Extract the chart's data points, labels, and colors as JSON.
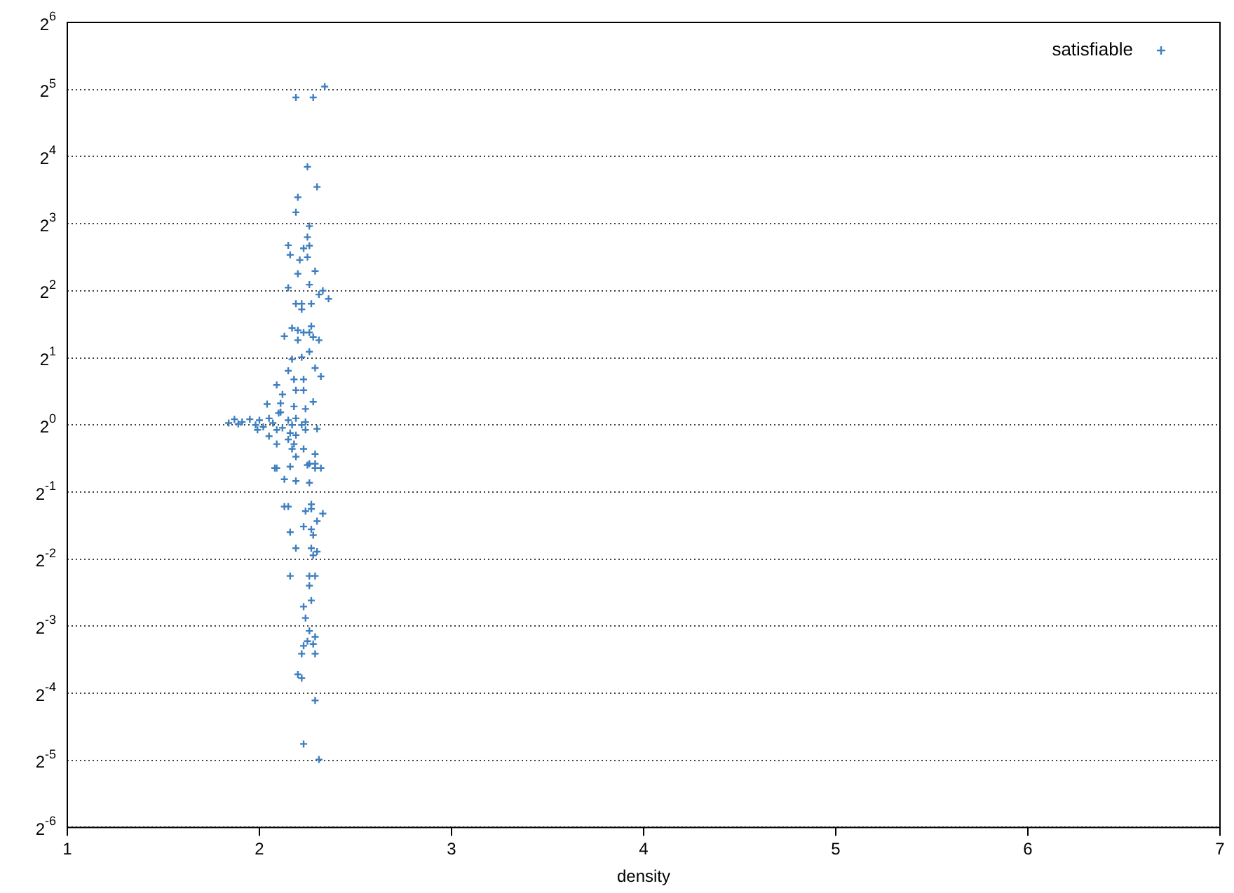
{
  "chart_data": {
    "type": "scatter",
    "xlabel": "density",
    "xlim": [
      1,
      7
    ],
    "xticks": [
      1,
      2,
      3,
      4,
      5,
      6,
      7
    ],
    "log": "y",
    "ylim": [
      0.015625,
      64
    ],
    "yticks": [
      {
        "value": 0.015625,
        "label": "2$^{-6}$"
      },
      {
        "value": 0.03125,
        "label": "2$^{-5}$"
      },
      {
        "value": 0.0625,
        "label": "2$^{-4}$"
      },
      {
        "value": 0.125,
        "label": "2$^{-3}$"
      },
      {
        "value": 0.25,
        "label": "2$^{-2}$"
      },
      {
        "value": 0.5,
        "label": "2$^{-1}$"
      },
      {
        "value": 1,
        "label": "2$^{0}$"
      },
      {
        "value": 2,
        "label": "2$^{1}$"
      },
      {
        "value": 4,
        "label": "2$^{2}$"
      },
      {
        "value": 8,
        "label": "2$^{3}$"
      },
      {
        "value": 16,
        "label": "2$^{4}$"
      },
      {
        "value": 32,
        "label": "2$^{5}$"
      },
      {
        "value": 64,
        "label": "2$^{6}$"
      }
    ],
    "grid": "y",
    "legend": "top right",
    "marker": "cross",
    "series": [
      {
        "name": "satisfiable",
        "color": "#3f7fbf",
        "x": [
          2.34,
          2.19,
          2.28,
          2.25,
          2.3,
          2.2,
          2.19,
          2.26,
          2.25,
          2.15,
          2.26,
          2.23,
          2.16,
          2.25,
          2.21,
          2.29,
          2.2,
          2.26,
          2.15,
          2.33,
          2.31,
          2.36,
          2.19,
          2.22,
          2.27,
          2.22,
          2.17,
          2.27,
          2.2,
          2.23,
          2.26,
          2.13,
          2.28,
          2.31,
          2.2,
          2.26,
          2.17,
          2.22,
          2.29,
          2.15,
          2.32,
          2.18,
          2.23,
          2.09,
          2.19,
          2.23,
          2.12,
          2.28,
          2.11,
          2.04,
          2.18,
          2.24,
          2.11,
          1.84,
          1.87,
          1.89,
          1.91,
          1.95,
          1.98,
          2.0,
          2.02,
          2.05,
          2.07,
          2.1,
          2.12,
          2.15,
          2.17,
          2.19,
          2.22,
          2.24,
          2.3,
          1.99,
          2.09,
          2.16,
          2.19,
          2.24,
          2.05,
          2.15,
          2.18,
          2.17,
          2.23,
          2.09,
          2.19,
          2.29,
          2.26,
          2.29,
          2.09,
          2.16,
          2.13,
          2.19,
          2.26,
          2.08,
          2.25,
          2.32,
          2.29,
          2.13,
          2.15,
          2.27,
          2.27,
          2.24,
          2.33,
          2.3,
          2.23,
          2.27,
          2.16,
          2.28,
          2.19,
          2.27,
          2.3,
          2.28,
          2.16,
          2.26,
          2.29,
          2.26,
          2.27,
          2.23,
          2.24,
          2.26,
          2.29,
          2.25,
          2.23,
          2.28,
          2.22,
          2.29,
          2.2,
          2.22,
          2.29,
          2.23,
          2.31
        ],
        "values": [
          33,
          29.5,
          29.5,
          14.4,
          11.7,
          10.5,
          9.0,
          7.8,
          6.96,
          6.4,
          6.37,
          6.2,
          5.8,
          5.66,
          5.5,
          4.9,
          4.77,
          4.26,
          4.13,
          4.0,
          3.85,
          3.68,
          3.5,
          3.5,
          3.5,
          3.3,
          2.72,
          2.77,
          2.66,
          2.6,
          2.6,
          2.5,
          2.48,
          2.4,
          2.4,
          2.13,
          1.97,
          2.01,
          1.8,
          1.75,
          1.65,
          1.6,
          1.6,
          1.51,
          1.43,
          1.43,
          1.37,
          1.27,
          1.25,
          1.24,
          1.21,
          1.18,
          1.14,
          1.02,
          1.06,
          1.01,
          1.03,
          1.06,
          1.0,
          1.05,
          0.98,
          1.07,
          1.02,
          1.13,
          0.97,
          1.05,
          1.0,
          1.07,
          1.0,
          1.03,
          0.96,
          0.95,
          0.95,
          0.92,
          0.9,
          0.95,
          0.89,
          0.86,
          0.82,
          0.78,
          0.78,
          0.82,
          0.72,
          0.74,
          0.67,
          0.64,
          0.64,
          0.65,
          0.57,
          0.56,
          0.55,
          0.64,
          0.66,
          0.64,
          0.67,
          0.43,
          0.43,
          0.44,
          0.42,
          0.41,
          0.4,
          0.37,
          0.35,
          0.34,
          0.33,
          0.32,
          0.28,
          0.28,
          0.27,
          0.26,
          0.21,
          0.21,
          0.21,
          0.19,
          0.163,
          0.153,
          0.136,
          0.119,
          0.112,
          0.107,
          0.102,
          0.104,
          0.094,
          0.094,
          0.076,
          0.073,
          0.058,
          0.037,
          0.0315
        ]
      }
    ]
  }
}
